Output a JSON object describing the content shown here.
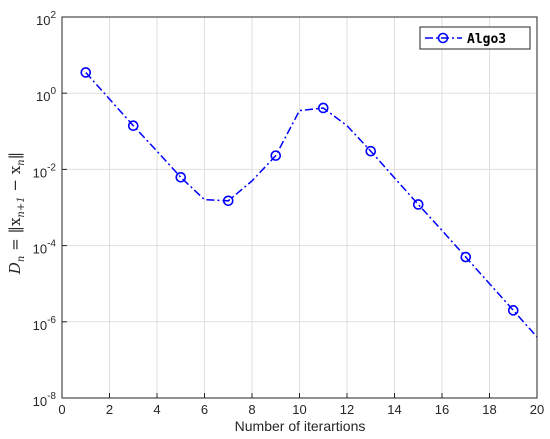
{
  "chart_data": {
    "type": "line",
    "xlabel": "Number of iterartions",
    "ylabel": "D_n = ‖x_{n+1} − x_n‖",
    "ylabel_parts": {
      "lhs": "D",
      "lhs_sub": "n",
      "eq": " = ‖x",
      "sub1": "n+1",
      "mid": " − x",
      "sub2": "n",
      "end": "‖"
    },
    "xlim": [
      0,
      20
    ],
    "ylim_log10": [
      -8,
      2
    ],
    "yscale": "log",
    "grid": true,
    "legend_position": "top-right",
    "x_ticks": [
      "0",
      "2",
      "4",
      "6",
      "8",
      "10",
      "12",
      "14",
      "16",
      "18",
      "20"
    ],
    "y_ticks": [
      {
        "base": "10",
        "exp": "-8"
      },
      {
        "base": "10",
        "exp": "-6"
      },
      {
        "base": "10",
        "exp": "-4"
      },
      {
        "base": "10",
        "exp": "-2"
      },
      {
        "base": "10",
        "exp": "0"
      },
      {
        "base": "10",
        "exp": "2"
      }
    ],
    "series": [
      {
        "name": "Algo3",
        "color": "#0000ff",
        "line_style": "dash-dot",
        "marker": "circle",
        "marker_every": 2,
        "x": [
          1,
          2,
          3,
          4,
          5,
          6,
          7,
          8,
          9,
          10,
          11,
          12,
          13,
          14,
          15,
          16,
          17,
          18,
          19,
          20
        ],
        "y": [
          3.5,
          0.7,
          0.14,
          0.03,
          0.0062,
          0.0016,
          0.0015,
          0.005,
          0.023,
          0.35,
          0.41,
          0.14,
          0.03,
          0.006,
          0.0012,
          0.00025,
          5e-05,
          1e-05,
          2e-06,
          4e-07
        ]
      }
    ]
  }
}
